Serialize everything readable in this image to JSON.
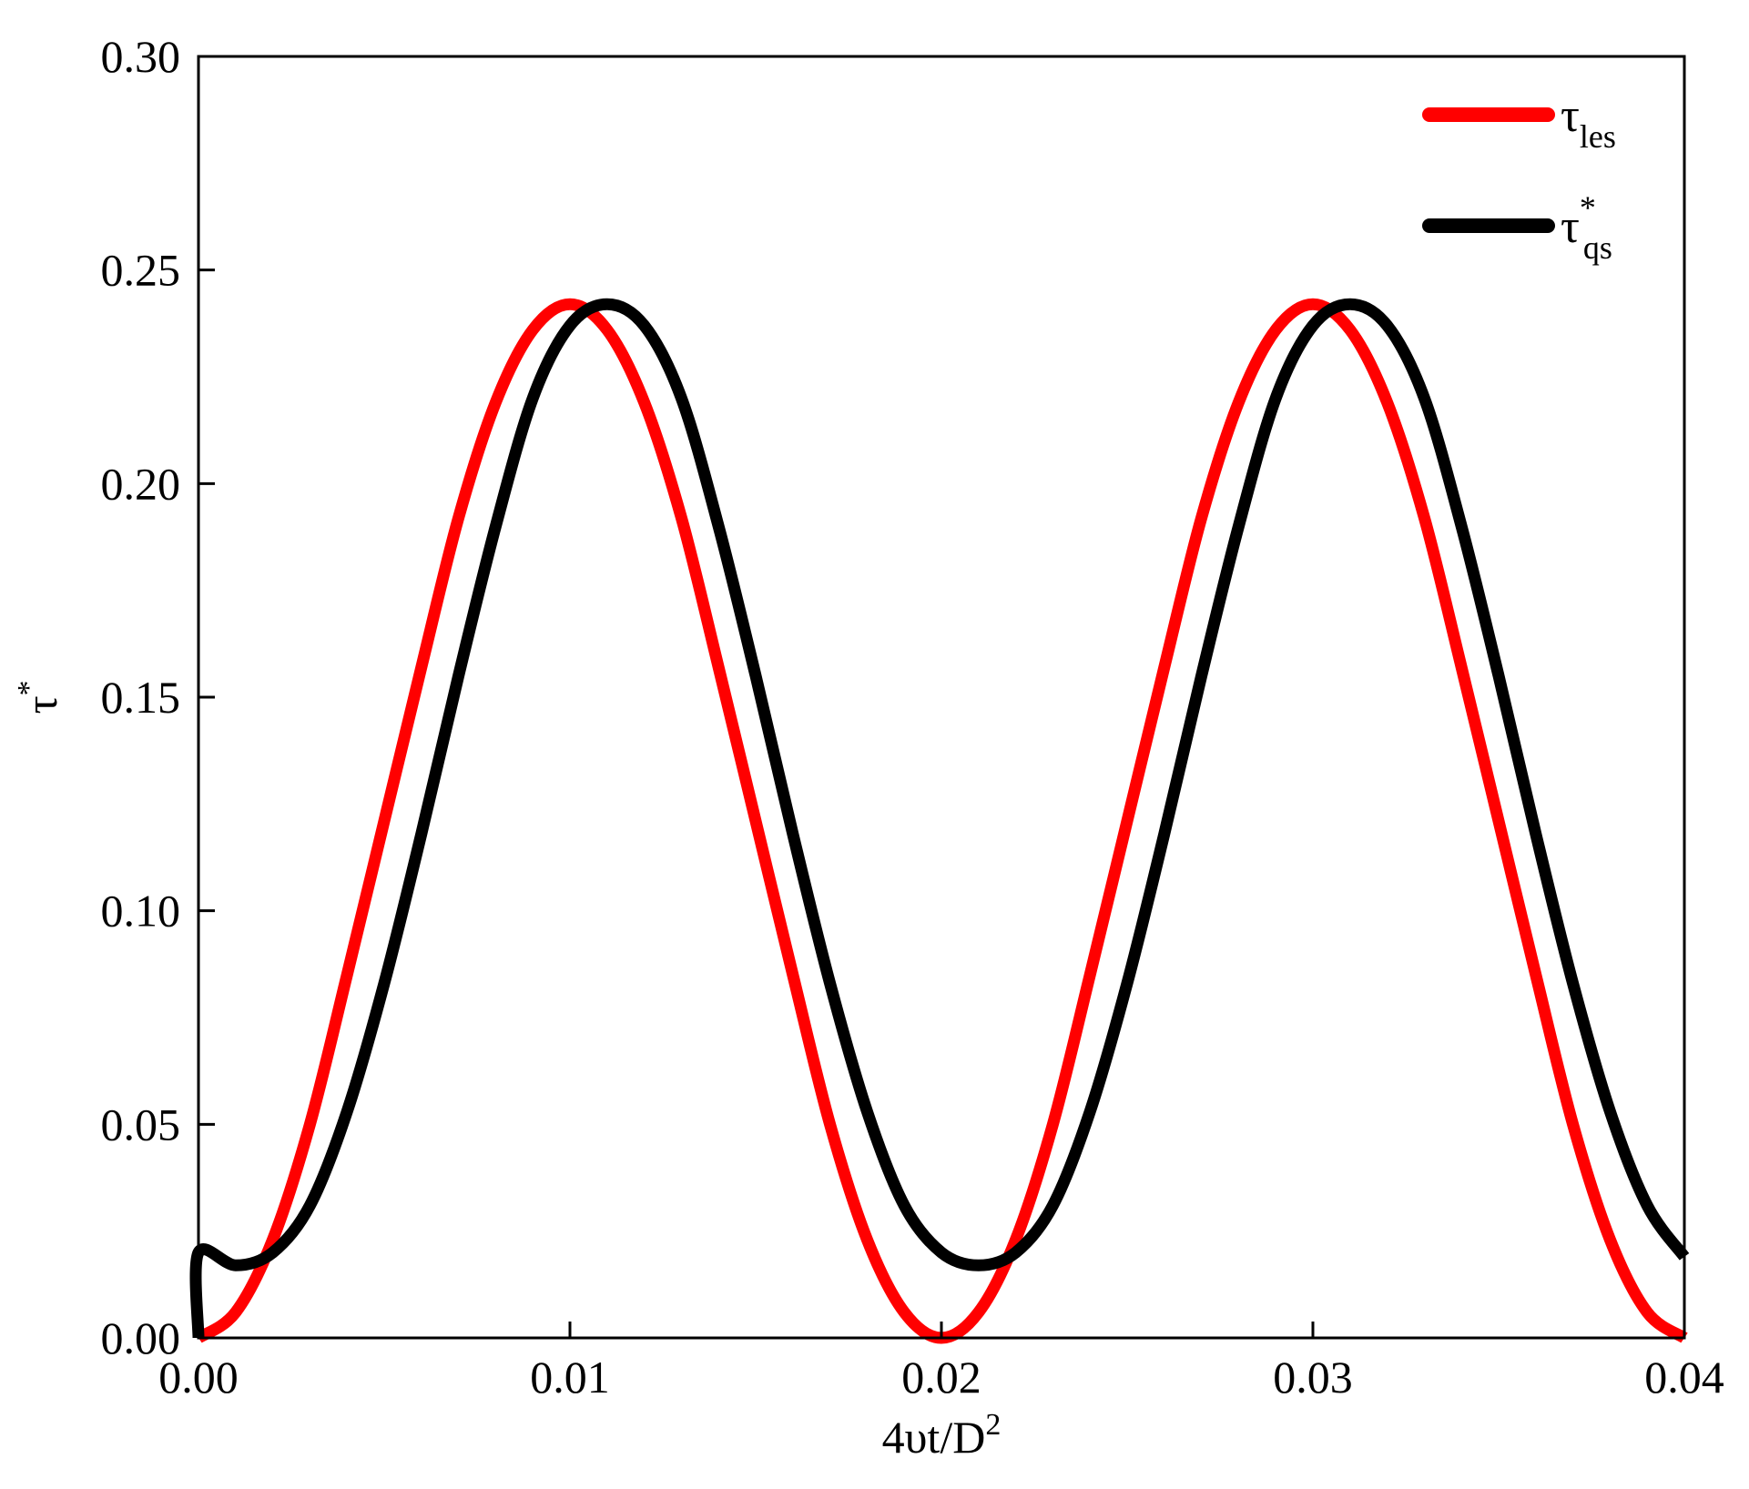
{
  "chart_data": {
    "type": "line",
    "xlabel": {
      "base": "4υt/D",
      "sup": "2"
    },
    "ylabel": {
      "base": "τ",
      "sup": "*"
    },
    "xlim": [
      0,
      0.04
    ],
    "ylim": [
      0,
      0.3
    ],
    "x_ticks": [
      "0.00",
      "0.01",
      "0.02",
      "0.03",
      "0.04"
    ],
    "y_ticks": [
      "0.00",
      "0.05",
      "0.10",
      "0.15",
      "0.20",
      "0.25",
      "0.30"
    ],
    "grid": false,
    "legend_position": "top-right",
    "series": [
      {
        "name": {
          "base": "τ",
          "sub": "les",
          "sup": ""
        },
        "color": "#ff0000",
        "x": [
          0.0,
          0.001,
          0.002,
          0.003,
          0.004,
          0.005,
          0.006,
          0.007,
          0.008,
          0.009,
          0.01,
          0.011,
          0.012,
          0.013,
          0.014,
          0.015,
          0.016,
          0.017,
          0.018,
          0.019,
          0.02,
          0.021,
          0.022,
          0.023,
          0.024,
          0.025,
          0.026,
          0.027,
          0.028,
          0.029,
          0.03,
          0.031,
          0.032,
          0.033,
          0.034,
          0.035,
          0.036,
          0.037,
          0.038,
          0.039,
          0.04
        ],
        "y": [
          0.0,
          0.006,
          0.023,
          0.05,
          0.085,
          0.121,
          0.157,
          0.192,
          0.219,
          0.236,
          0.242,
          0.236,
          0.219,
          0.192,
          0.157,
          0.121,
          0.085,
          0.05,
          0.023,
          0.006,
          0.0,
          0.006,
          0.023,
          0.05,
          0.085,
          0.121,
          0.157,
          0.192,
          0.219,
          0.236,
          0.242,
          0.236,
          0.219,
          0.192,
          0.157,
          0.121,
          0.085,
          0.05,
          0.023,
          0.006,
          0.0
        ]
      },
      {
        "name": {
          "base": "τ",
          "sub": "qs",
          "sup": "*"
        },
        "color": "#000000",
        "x": [
          0.0,
          0.0,
          0.001,
          0.002,
          0.003,
          0.004,
          0.005,
          0.006,
          0.007,
          0.008,
          0.009,
          0.01,
          0.011,
          0.012,
          0.013,
          0.014,
          0.015,
          0.016,
          0.017,
          0.018,
          0.019,
          0.02,
          0.021,
          0.022,
          0.023,
          0.024,
          0.025,
          0.026,
          0.027,
          0.028,
          0.029,
          0.03,
          0.031,
          0.032,
          0.033,
          0.034,
          0.035,
          0.036,
          0.037,
          0.038,
          0.039,
          0.04
        ],
        "y": [
          0.0,
          0.02,
          0.017,
          0.02,
          0.031,
          0.053,
          0.083,
          0.118,
          0.155,
          0.19,
          0.22,
          0.237,
          0.242,
          0.237,
          0.22,
          0.19,
          0.155,
          0.118,
          0.083,
          0.053,
          0.031,
          0.02,
          0.017,
          0.02,
          0.031,
          0.053,
          0.083,
          0.118,
          0.155,
          0.19,
          0.22,
          0.237,
          0.242,
          0.237,
          0.22,
          0.19,
          0.155,
          0.118,
          0.083,
          0.053,
          0.031,
          0.019
        ]
      }
    ]
  }
}
